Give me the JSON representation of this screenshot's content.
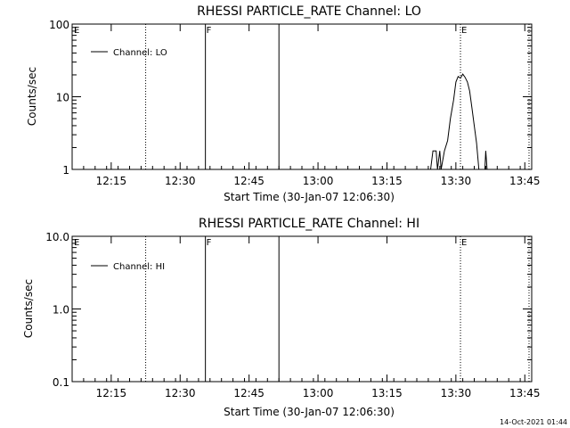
{
  "footer": {
    "timestamp": "14-Oct-2021 01:44"
  },
  "chart_data": [
    {
      "type": "line",
      "title": "RHESSI PARTICLE_RATE Channel: LO",
      "xlabel": "Start Time (30-Jan-07 12:06:30)",
      "ylabel": "Counts/sec",
      "y_scale": "log",
      "xlim_minutes": [
        0,
        100
      ],
      "ylim": [
        1,
        100
      ],
      "x_ticks": [
        {
          "label": "12:15",
          "minute": 8.5
        },
        {
          "label": "12:30",
          "minute": 23.5
        },
        {
          "label": "12:45",
          "minute": 38.5
        },
        {
          "label": "13:00",
          "minute": 53.5
        },
        {
          "label": "13:15",
          "minute": 68.5
        },
        {
          "label": "13:30",
          "minute": 83.5
        },
        {
          "label": "13:45",
          "minute": 98.5
        }
      ],
      "y_ticks": [
        {
          "label": "1",
          "value": 1
        },
        {
          "label": "10",
          "value": 10
        },
        {
          "label": "100",
          "value": 100
        }
      ],
      "legend": {
        "label": "Channel: LO",
        "placement": "top-left"
      },
      "vertical_lines": [
        {
          "minute": 16,
          "style": "dotted",
          "label": ""
        },
        {
          "minute": 29,
          "style": "solid",
          "label": "F"
        },
        {
          "minute": 45,
          "style": "solid",
          "label": ""
        },
        {
          "minute": 84.5,
          "style": "dotted",
          "label": "E"
        },
        {
          "minute": 100,
          "style": "dotted",
          "label": ""
        }
      ],
      "edge_labels": [
        {
          "minute": 0,
          "label": "E"
        }
      ],
      "series": [
        {
          "name": "Channel: LO",
          "points": [
            [
              78,
              1
            ],
            [
              78.5,
              1.8
            ],
            [
              79.2,
              1.8
            ],
            [
              79.5,
              1
            ],
            [
              80,
              1.8
            ],
            [
              80.3,
              1
            ],
            [
              81,
              1.8
            ],
            [
              81.7,
              2.5
            ],
            [
              82.3,
              5
            ],
            [
              83,
              9
            ],
            [
              83.5,
              16
            ],
            [
              84,
              19
            ],
            [
              84.5,
              18
            ],
            [
              85,
              20.5
            ],
            [
              85.5,
              18.5
            ],
            [
              86,
              16
            ],
            [
              86.5,
              12
            ],
            [
              87,
              7
            ],
            [
              87.5,
              4
            ],
            [
              88,
              2.3
            ],
            [
              88.5,
              1
            ],
            [
              89.8,
              1
            ],
            [
              90,
              1.8
            ],
            [
              90.3,
              1
            ]
          ]
        }
      ]
    },
    {
      "type": "line",
      "title": "RHESSI PARTICLE_RATE Channel: HI",
      "xlabel": "Start Time (30-Jan-07 12:06:30)",
      "ylabel": "Counts/sec",
      "y_scale": "log",
      "xlim_minutes": [
        0,
        100
      ],
      "ylim": [
        0.1,
        10
      ],
      "x_ticks": [
        {
          "label": "12:15",
          "minute": 8.5
        },
        {
          "label": "12:30",
          "minute": 23.5
        },
        {
          "label": "12:45",
          "minute": 38.5
        },
        {
          "label": "13:00",
          "minute": 53.5
        },
        {
          "label": "13:15",
          "minute": 68.5
        },
        {
          "label": "13:30",
          "minute": 83.5
        },
        {
          "label": "13:45",
          "minute": 98.5
        }
      ],
      "y_ticks": [
        {
          "label": "0.1",
          "value": 0.1
        },
        {
          "label": "1.0",
          "value": 1
        },
        {
          "label": "10.0",
          "value": 10
        }
      ],
      "legend": {
        "label": "Channel: HI",
        "placement": "top-left"
      },
      "vertical_lines": [
        {
          "minute": 16,
          "style": "dotted",
          "label": ""
        },
        {
          "minute": 29,
          "style": "solid",
          "label": "F"
        },
        {
          "minute": 45,
          "style": "solid",
          "label": ""
        },
        {
          "minute": 84.5,
          "style": "dotted",
          "label": "E"
        },
        {
          "minute": 100,
          "style": "dotted",
          "label": ""
        }
      ],
      "edge_labels": [
        {
          "minute": 0,
          "label": "E"
        }
      ],
      "series": [
        {
          "name": "Channel: HI",
          "points": []
        }
      ]
    }
  ]
}
